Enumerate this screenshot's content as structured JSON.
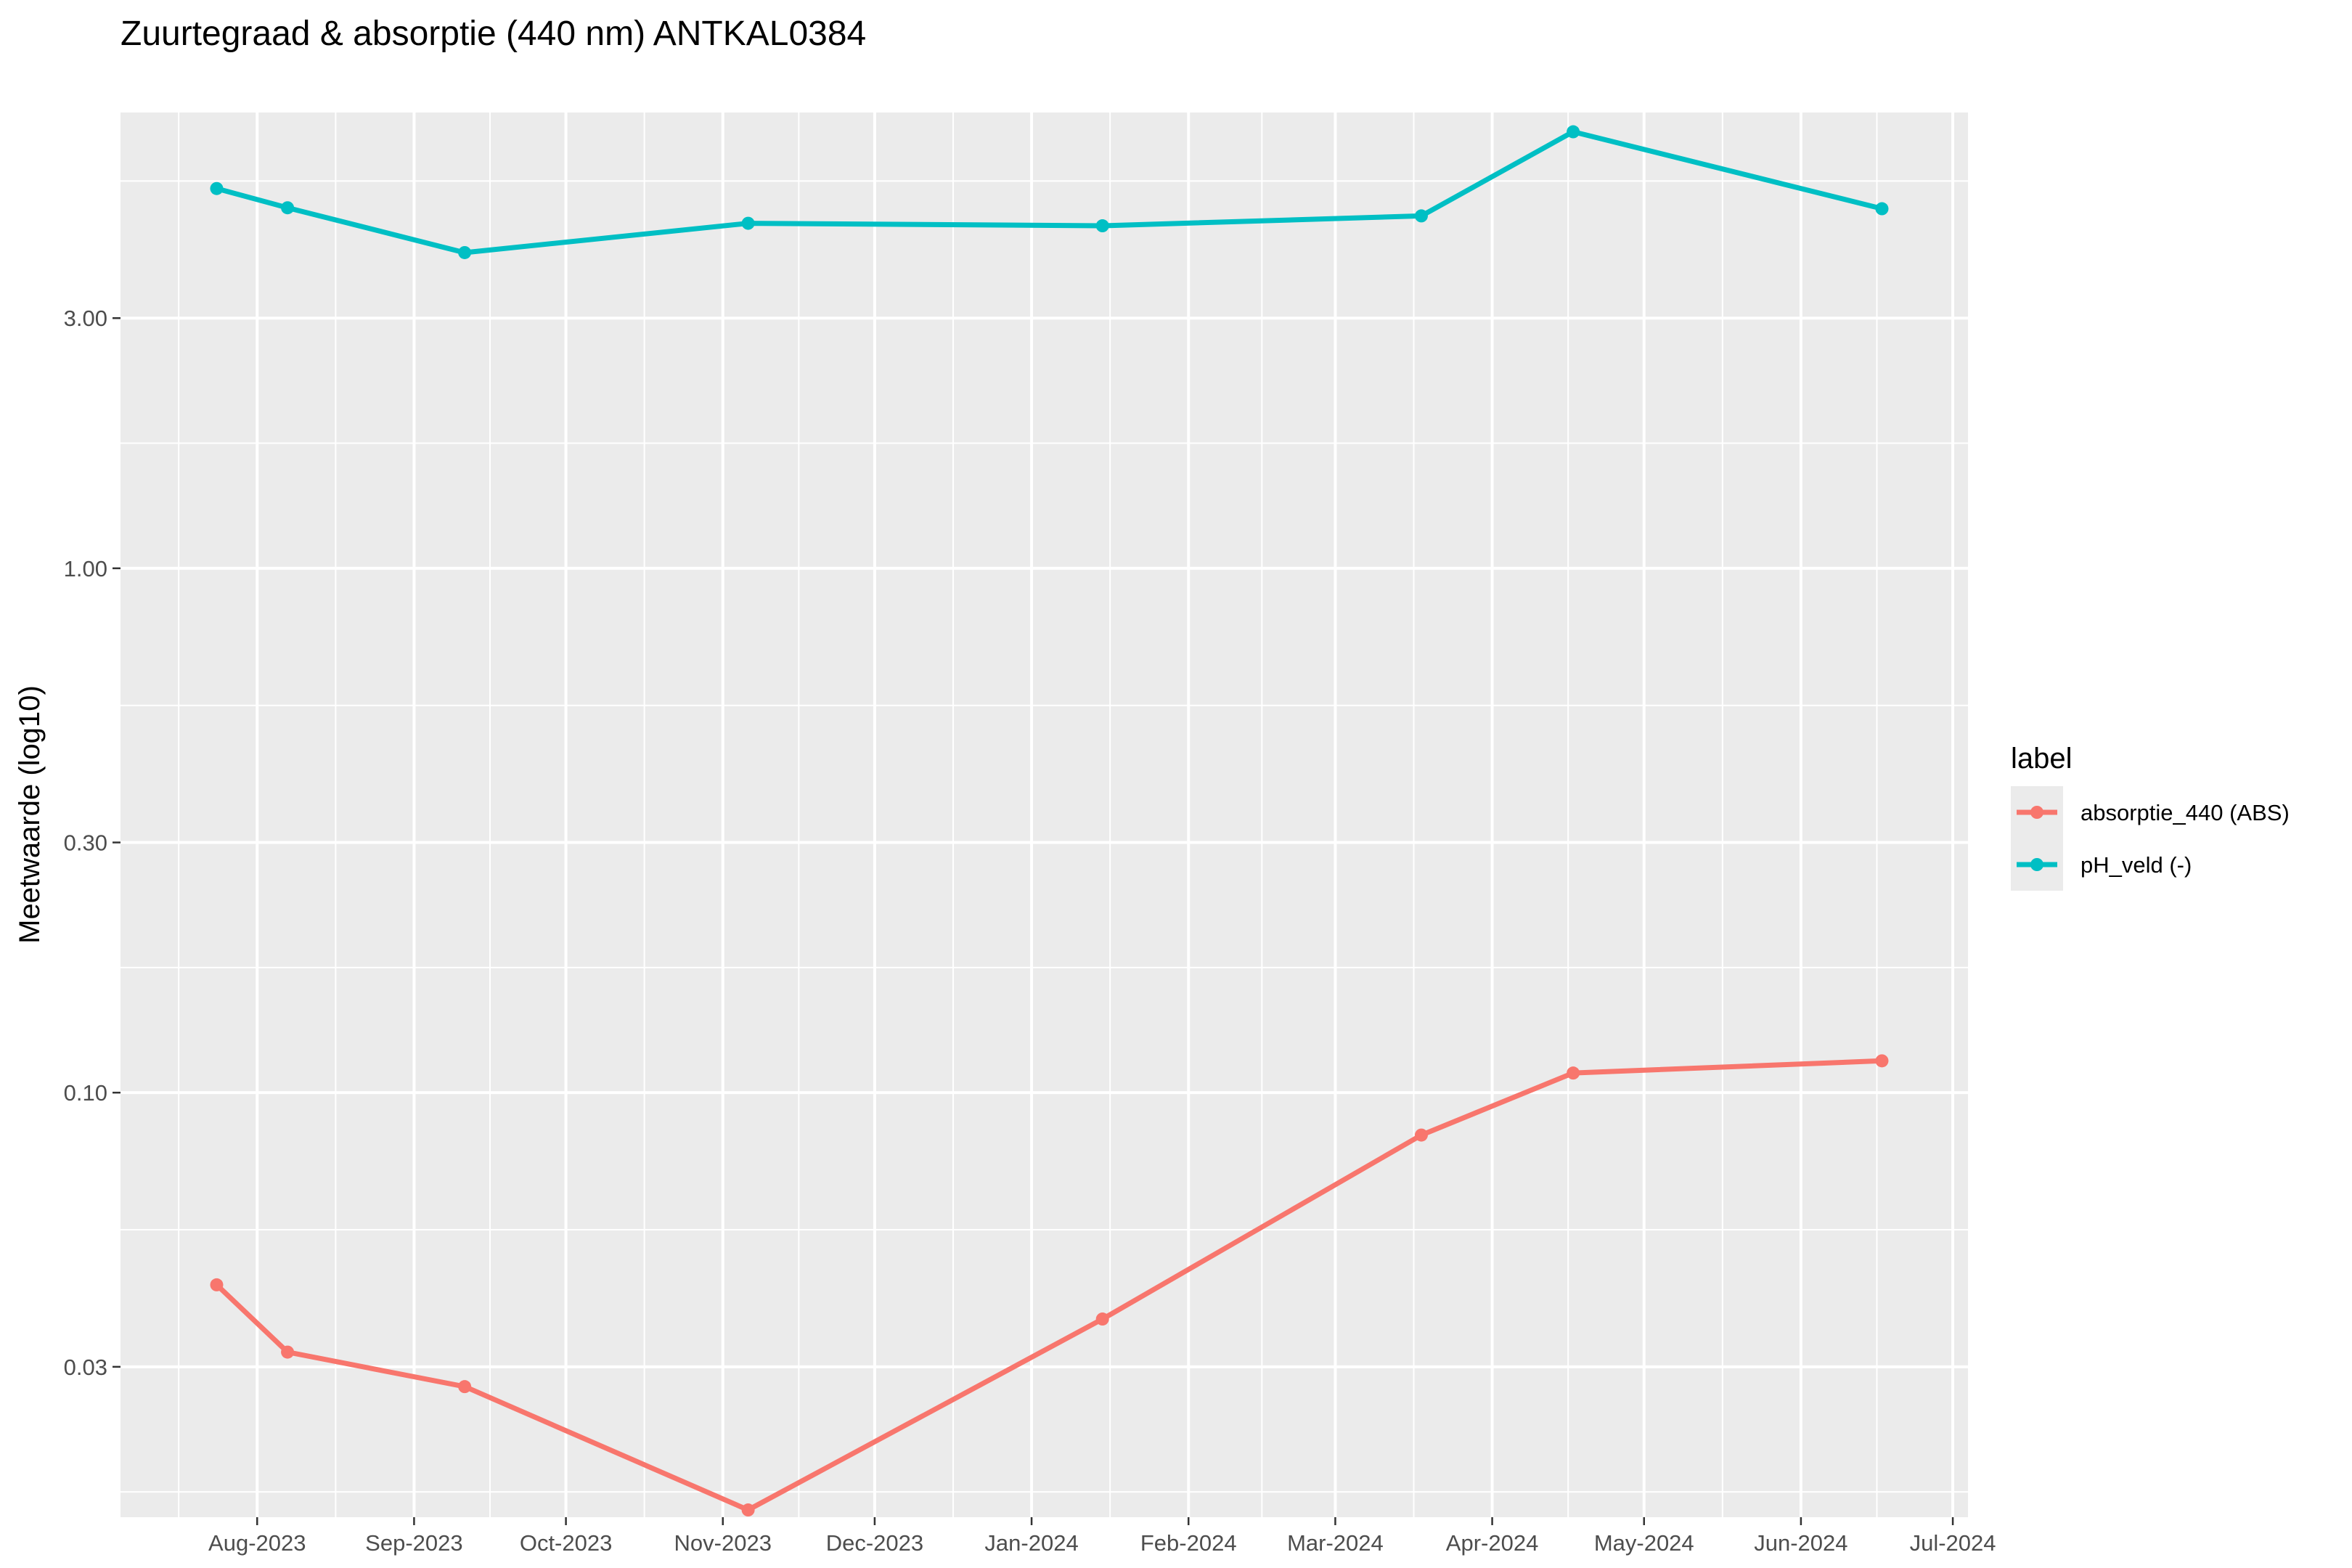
{
  "chart_data": {
    "type": "line",
    "title": "Zuurtegraad & absorptie (440 nm) ANTKAL0384",
    "xlabel": "",
    "ylabel": "Meetwaarde (log10)",
    "y_scale": "log10",
    "ylim": [
      0.0155,
      7.4
    ],
    "xlim": [
      "2023-07-05",
      "2024-07-04"
    ],
    "grid": true,
    "legend_position": "right",
    "legend_title": "label",
    "x_ticks": [
      {
        "date": "2023-08-01",
        "label": "Aug-2023"
      },
      {
        "date": "2023-09-01",
        "label": "Sep-2023"
      },
      {
        "date": "2023-10-01",
        "label": "Oct-2023"
      },
      {
        "date": "2023-11-01",
        "label": "Nov-2023"
      },
      {
        "date": "2023-12-01",
        "label": "Dec-2023"
      },
      {
        "date": "2024-01-01",
        "label": "Jan-2024"
      },
      {
        "date": "2024-02-01",
        "label": "Feb-2024"
      },
      {
        "date": "2024-03-01",
        "label": "Mar-2024"
      },
      {
        "date": "2024-04-01",
        "label": "Apr-2024"
      },
      {
        "date": "2024-05-01",
        "label": "May-2024"
      },
      {
        "date": "2024-06-01",
        "label": "Jun-2024"
      },
      {
        "date": "2024-07-01",
        "label": "Jul-2024"
      }
    ],
    "y_ticks": [
      {
        "value": 0.03,
        "label": "0.03"
      },
      {
        "value": 0.1,
        "label": "0.10"
      },
      {
        "value": 0.3,
        "label": "0.30"
      },
      {
        "value": 1.0,
        "label": "1.00"
      },
      {
        "value": 3.0,
        "label": "3.00"
      }
    ],
    "y_minor_ticks": [
      0.01732,
      0.05477,
      0.1732,
      0.5477,
      1.732,
      5.477
    ],
    "series": [
      {
        "name": "absorptie_440 (ABS)",
        "color": "#F8766D",
        "points": [
          {
            "x": "2023-07-24",
            "y": 0.043
          },
          {
            "x": "2023-08-07",
            "y": 0.032
          },
          {
            "x": "2023-09-11",
            "y": 0.0275
          },
          {
            "x": "2023-11-06",
            "y": 0.016
          },
          {
            "x": "2024-01-15",
            "y": 0.037
          },
          {
            "x": "2024-03-18",
            "y": 0.083
          },
          {
            "x": "2024-04-17",
            "y": 0.109
          },
          {
            "x": "2024-06-17",
            "y": 0.115
          }
        ]
      },
      {
        "name": "pH_veld (-)",
        "color": "#00BFC4",
        "points": [
          {
            "x": "2023-07-24",
            "y": 5.3
          },
          {
            "x": "2023-08-07",
            "y": 4.87
          },
          {
            "x": "2023-09-11",
            "y": 4.0
          },
          {
            "x": "2023-11-06",
            "y": 4.55
          },
          {
            "x": "2024-01-15",
            "y": 4.5
          },
          {
            "x": "2024-03-18",
            "y": 4.7
          },
          {
            "x": "2024-04-17",
            "y": 6.8
          },
          {
            "x": "2024-06-17",
            "y": 4.85
          }
        ]
      }
    ]
  }
}
